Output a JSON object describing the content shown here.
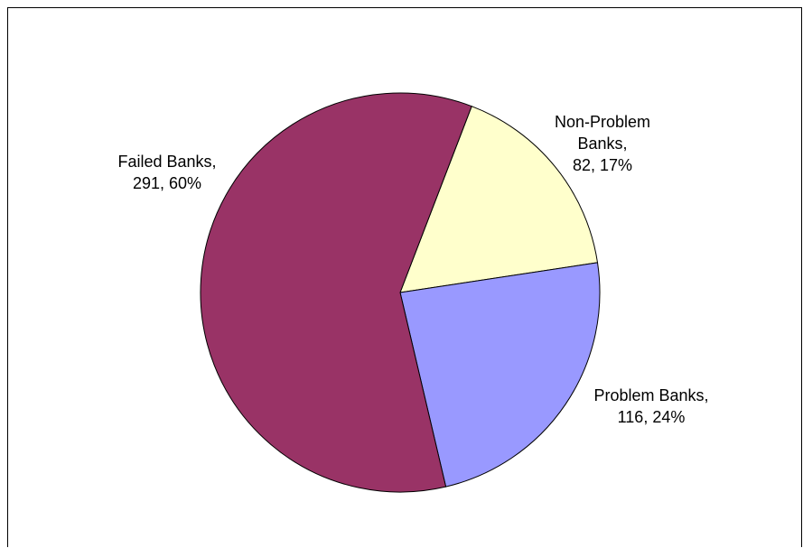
{
  "chart_data": {
    "type": "pie",
    "title": "",
    "slices": [
      {
        "name": "Failed Banks",
        "value": 291,
        "percent_label": "60%",
        "label_lines": [
          "Failed Banks,",
          "291, 60%"
        ],
        "color": "#993366"
      },
      {
        "name": "Non-Problem Banks",
        "value": 82,
        "percent_label": "17%",
        "label_lines": [
          "Non-Problem",
          "Banks,",
          "82, 17%"
        ],
        "color": "#FFFFCC"
      },
      {
        "name": "Problem Banks",
        "value": 116,
        "percent_label": "24%",
        "label_lines": [
          "Problem Banks,",
          "116, 24%"
        ],
        "color": "#9999FF"
      }
    ],
    "legend": "none",
    "grid": false
  }
}
